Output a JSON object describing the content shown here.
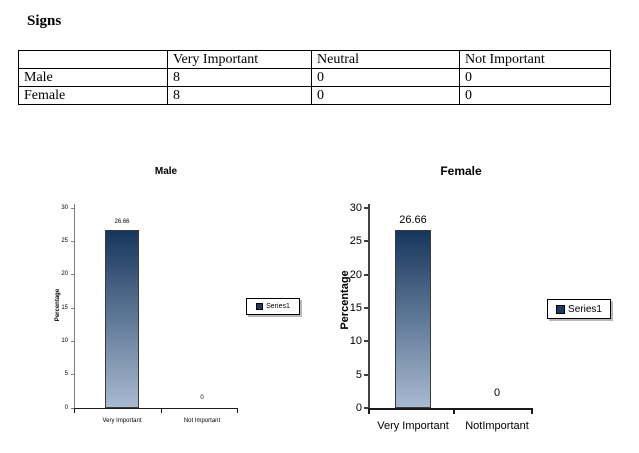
{
  "document": {
    "title": "Signs"
  },
  "table": {
    "headers": [
      "",
      "Very Important",
      "Neutral",
      "Not Important"
    ],
    "rows": [
      {
        "label": "Male",
        "values": [
          "8",
          "0",
          "0"
        ]
      },
      {
        "label": "Female",
        "values": [
          "8",
          "0",
          "0"
        ]
      }
    ]
  },
  "chart_data": [
    {
      "type": "bar",
      "title": "Male",
      "categories": [
        "Very Important",
        "Not Important"
      ],
      "values": [
        26.66,
        0
      ],
      "data_labels": [
        "26.66",
        "0"
      ],
      "xlabel": "",
      "ylabel": "Percentage",
      "ylim": [
        0,
        30
      ],
      "yticks": [
        0,
        5,
        10,
        15,
        20,
        25,
        30
      ],
      "grid": false,
      "legend": [
        "Series1"
      ],
      "legend_position": "right",
      "bar_gradient": [
        "#16365c",
        "#a9bad1"
      ],
      "legend_marker_color": "#1f3a5f",
      "y_axis_color": "#7f7f7f",
      "x_axis_color": "#1a1a1a"
    },
    {
      "type": "bar",
      "title": "Female",
      "categories": [
        "Very Important",
        "NotImportant"
      ],
      "values": [
        26.66,
        0
      ],
      "data_labels": [
        "26.66",
        "0"
      ],
      "xlabel": "",
      "ylabel": "Percentage",
      "ylim": [
        0,
        30
      ],
      "yticks": [
        0,
        5,
        10,
        15,
        20,
        25,
        30
      ],
      "grid": false,
      "legend": [
        "Series1"
      ],
      "legend_position": "right",
      "bar_gradient": [
        "#16365c",
        "#a9bad1"
      ],
      "legend_marker_color": "#1f3a5f",
      "y_axis_color": "#404040",
      "x_axis_color": "#1a1a1a"
    }
  ]
}
